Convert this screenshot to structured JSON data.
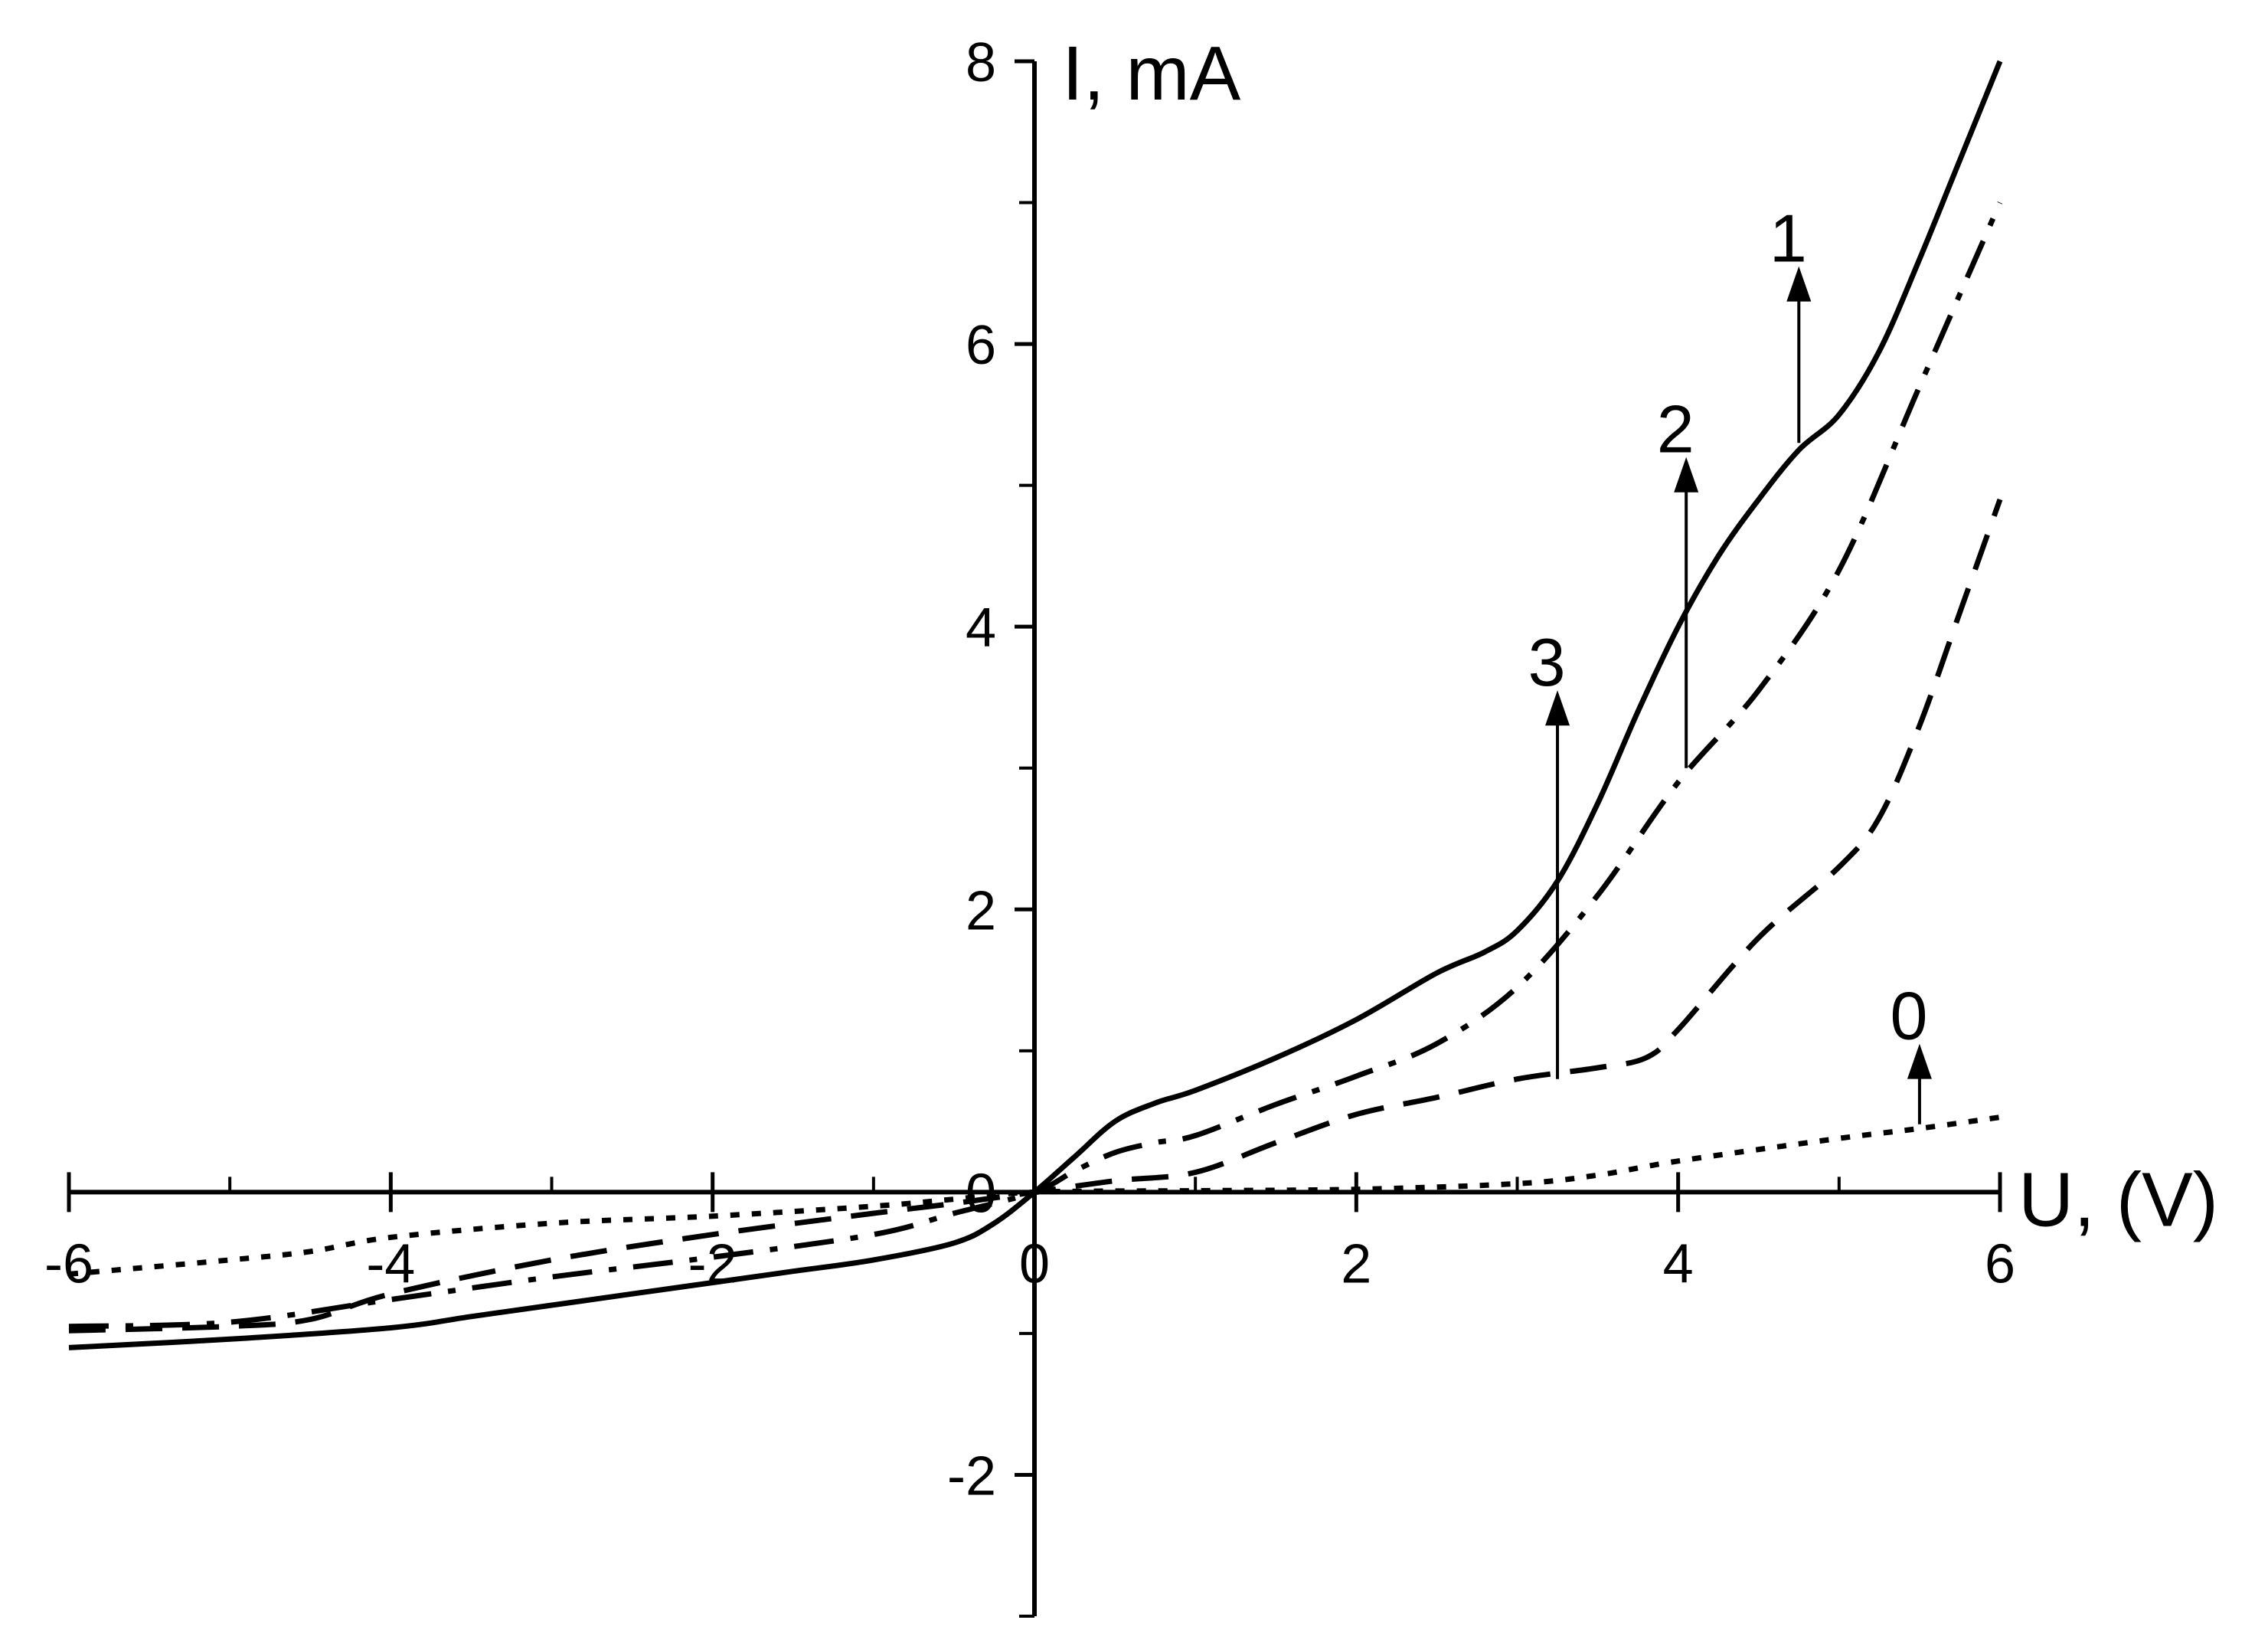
{
  "chart_data": {
    "type": "line",
    "xlabel": "U, (V)",
    "ylabel": "I, mA",
    "xlim": [
      -6,
      6
    ],
    "ylim": [
      -3,
      8
    ],
    "x_ticks": [
      -6,
      -4,
      -2,
      0,
      2,
      4,
      6
    ],
    "x_tick_labels": [
      "-6",
      "-4",
      "-2",
      "0",
      "2",
      "4",
      "6"
    ],
    "y_ticks": [
      -2,
      0,
      2,
      4,
      6,
      8
    ],
    "y_tick_labels": [
      "-2",
      "0",
      "2",
      "4",
      "6",
      "8"
    ],
    "grid": false,
    "series": [
      {
        "name": "1",
        "style": "solid",
        "x": [
          -6,
          -5,
          -4,
          -3.5,
          -3,
          -2.5,
          -2,
          -1.5,
          -1,
          -0.5,
          -0.25,
          0,
          0.25,
          0.5,
          0.75,
          1,
          1.5,
          2,
          2.5,
          2.8,
          3,
          3.25,
          3.5,
          3.75,
          4,
          4.25,
          4.5,
          4.75,
          5,
          5.25,
          5.5,
          5.75,
          6
        ],
        "y": [
          -1.1,
          -1.04,
          -0.96,
          -0.88,
          -0.8,
          -0.72,
          -0.64,
          -0.56,
          -0.48,
          -0.36,
          -0.22,
          0,
          0.25,
          0.5,
          0.63,
          0.72,
          0.95,
          1.22,
          1.55,
          1.7,
          1.85,
          2.2,
          2.75,
          3.4,
          4.0,
          4.5,
          4.9,
          5.25,
          5.5,
          5.95,
          6.6,
          7.3,
          8.0
        ]
      },
      {
        "name": "2",
        "style": "dashdot",
        "x": [
          -6,
          -5,
          -4,
          -3,
          -2,
          -1,
          -0.5,
          0,
          0.25,
          0.5,
          0.75,
          1,
          1.5,
          2,
          2.5,
          3,
          3.5,
          4,
          4.5,
          5,
          5.5,
          6
        ],
        "y": [
          -0.95,
          -0.92,
          -0.76,
          -0.6,
          -0.46,
          -0.3,
          -0.15,
          0,
          0.15,
          0.28,
          0.35,
          0.4,
          0.62,
          0.82,
          1.05,
          1.45,
          2.1,
          2.9,
          3.55,
          4.4,
          5.7,
          7.0
        ]
      },
      {
        "name": "3",
        "style": "dashed",
        "x": [
          -6,
          -5,
          -4.5,
          -4,
          -3,
          -2,
          -1,
          -0.5,
          0,
          0.5,
          1,
          1.5,
          2,
          2.5,
          3,
          3.5,
          3.8,
          4,
          4.5,
          5,
          5.25,
          5.5,
          5.75,
          6
        ],
        "y": [
          -0.98,
          -0.95,
          -0.9,
          -0.72,
          -0.48,
          -0.3,
          -0.15,
          -0.08,
          0,
          0.08,
          0.14,
          0.35,
          0.55,
          0.67,
          0.8,
          0.88,
          0.95,
          1.15,
          1.8,
          2.3,
          2.65,
          3.3,
          4.1,
          4.9
        ]
      },
      {
        "name": "0",
        "style": "dotted",
        "x": [
          -6,
          -5,
          -4.5,
          -4,
          -3,
          -2,
          -1,
          -0.5,
          0,
          1,
          2,
          3,
          3.5,
          4,
          5,
          5.5,
          6
        ],
        "y": [
          -0.58,
          -0.48,
          -0.42,
          -0.32,
          -0.22,
          -0.17,
          -0.1,
          -0.05,
          0,
          0.01,
          0.02,
          0.06,
          0.12,
          0.22,
          0.38,
          0.45,
          0.53
        ]
      }
    ],
    "annotations": [
      {
        "label": "1",
        "x": 4.75,
        "y_from": 5.3,
        "y_to": 6.55
      },
      {
        "label": "2",
        "x": 4.05,
        "y_from": 3.0,
        "y_to": 5.2
      },
      {
        "label": "3",
        "x": 3.25,
        "y_from": 0.8,
        "y_to": 3.55
      },
      {
        "label": "0",
        "x": 5.5,
        "y_from": 0.48,
        "y_to": 1.05
      }
    ]
  }
}
